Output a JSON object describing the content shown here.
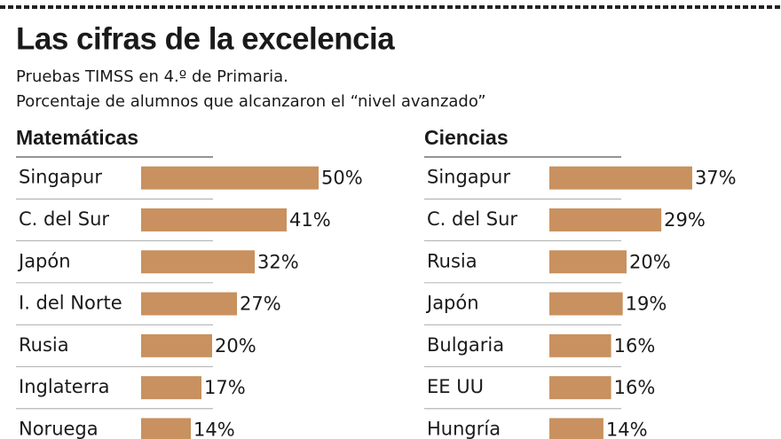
{
  "title": "Las cifras de la excelencia",
  "subtitle": [
    "Pruebas  TIMSS en 4.º de Primaria.",
    "Porcentaje de alumnos que alcanzaron el “nivel avanzado”"
  ],
  "chart_data": [
    {
      "type": "bar",
      "orientation": "horizontal",
      "title": "Matemáticas",
      "color": "#c8915f",
      "categories": [
        "Singapur",
        "C. del Sur",
        "Japón",
        "I. del Norte",
        "Rusia",
        "Inglaterra",
        "Noruega"
      ],
      "values": [
        50,
        41,
        32,
        27,
        20,
        17,
        14
      ],
      "value_labels": [
        "50%",
        "41%",
        "32%",
        "27%",
        "20%",
        "17%",
        "14%"
      ]
    },
    {
      "type": "bar",
      "orientation": "horizontal",
      "title": "Ciencias",
      "color": "#c8915f",
      "categories": [
        "Singapur",
        "C. del Sur",
        "Rusia",
        "Japón",
        "Bulgaria",
        "EE UU",
        "Hungría"
      ],
      "values": [
        37,
        29,
        20,
        19,
        16,
        16,
        14
      ],
      "value_labels": [
        "37%",
        "29%",
        "20%",
        "19%",
        "16%",
        "16%",
        "14%"
      ]
    }
  ]
}
